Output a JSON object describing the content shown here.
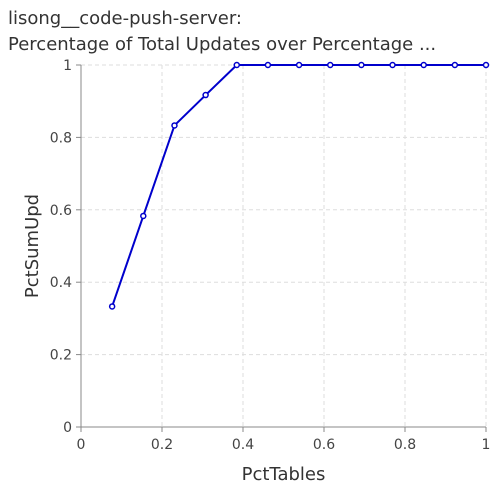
{
  "chart_data": {
    "type": "line",
    "title_lines": [
      "lisong__code-push-server:",
      "Percentage of Total Updates over Percentage ..."
    ],
    "xlabel": "PctTables",
    "ylabel": "PctSumUpd",
    "xlim": [
      0,
      1
    ],
    "ylim": [
      0,
      1
    ],
    "x_ticks": [
      "0",
      "0.2",
      "0.4",
      "0.6",
      "0.8",
      "1"
    ],
    "y_ticks": [
      "0",
      "0.2",
      "0.4",
      "0.6",
      "0.8",
      "1"
    ],
    "grid": true,
    "series": [
      {
        "color": "#0000cc",
        "x": [
          0.0769,
          0.1538,
          0.2308,
          0.3077,
          0.3846,
          0.4615,
          0.5385,
          0.6154,
          0.6923,
          0.7692,
          0.8462,
          0.9231,
          1.0
        ],
        "y": [
          0.333,
          0.583,
          0.833,
          0.917,
          1.0,
          1.0,
          1.0,
          1.0,
          1.0,
          1.0,
          1.0,
          1.0,
          1.0
        ]
      }
    ]
  }
}
